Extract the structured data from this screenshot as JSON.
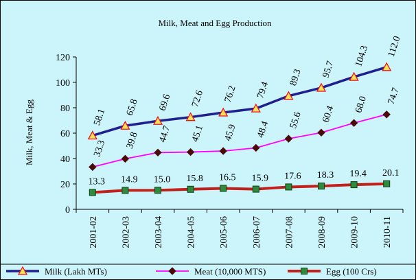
{
  "chart_data": {
    "type": "line",
    "title": "Milk, Meat and Egg Production",
    "xlabel": "",
    "ylabel": "Milk, Meat & Egg",
    "categories": [
      "2001-02",
      "2002-03",
      "2003-04",
      "2004-05",
      "2005-06",
      "2006-07",
      "2007-08",
      "2008-09",
      "2009-10",
      "2010-11"
    ],
    "ylim": [
      0,
      120
    ],
    "yticks": [
      0,
      20,
      40,
      60,
      80,
      100,
      120
    ],
    "grid": false,
    "legend_position": "bottom",
    "series": [
      {
        "name": "Milk (Lakh MTs)",
        "color": "#1f1f8f",
        "marker": "triangle",
        "values": [
          58.1,
          65.8,
          69.6,
          72.6,
          76.2,
          79.4,
          89.3,
          95.7,
          104.3,
          112.0
        ],
        "labels": [
          "58.1",
          "65.8",
          "69.6",
          "72.6",
          "76.2",
          "79.4",
          "89.3",
          "95.7",
          "104.3",
          "112.0"
        ]
      },
      {
        "name": "Meat (10,000 MTS)",
        "color": "#ff00ff",
        "marker": "diamond",
        "values": [
          33.3,
          39.8,
          44.7,
          45.1,
          45.9,
          48.4,
          55.6,
          60.4,
          68.0,
          74.7
        ],
        "labels": [
          "33.3",
          "39.8",
          "44.7",
          "45.1",
          "45.9",
          "48.4",
          "55.6",
          "60.4",
          "68.0",
          "74.7"
        ]
      },
      {
        "name": "Egg (100 Crs)",
        "color": "#c0211c",
        "marker": "square",
        "values": [
          13.3,
          14.9,
          15.0,
          15.8,
          16.5,
          15.9,
          17.6,
          18.3,
          19.4,
          20.1
        ],
        "labels": [
          "13.3",
          "14.9",
          "15.0",
          "15.8",
          "16.5",
          "15.9",
          "17.6",
          "18.3",
          "19.4",
          "20.1"
        ]
      }
    ]
  }
}
